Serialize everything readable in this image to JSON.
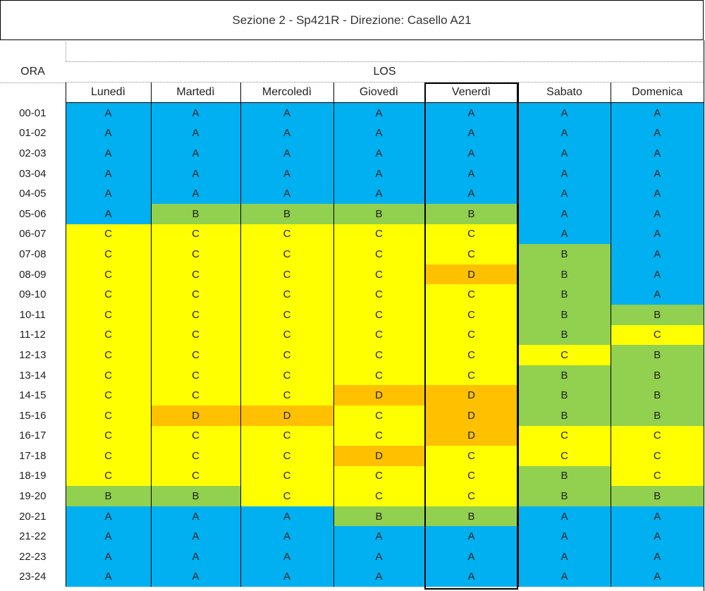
{
  "title": "Sezione 2 - Sp421R - Direzione: Casello A21",
  "ora_header": "ORA",
  "group_header": "LOS",
  "days": [
    "Lunedì",
    "Martedì",
    "Mercoledì",
    "Giovedì",
    "Venerdì",
    "Sabato",
    "Domenica"
  ],
  "highlighted_day": "Venerdì",
  "colors": {
    "A": "#00b0f0",
    "B": "#92d050",
    "C": "#ffff00",
    "D": "#ffc000"
  },
  "rows": [
    {
      "ora": "00-01",
      "los": [
        "A",
        "A",
        "A",
        "A",
        "A",
        "A",
        "A"
      ]
    },
    {
      "ora": "01-02",
      "los": [
        "A",
        "A",
        "A",
        "A",
        "A",
        "A",
        "A"
      ]
    },
    {
      "ora": "02-03",
      "los": [
        "A",
        "A",
        "A",
        "A",
        "A",
        "A",
        "A"
      ]
    },
    {
      "ora": "03-04",
      "los": [
        "A",
        "A",
        "A",
        "A",
        "A",
        "A",
        "A"
      ]
    },
    {
      "ora": "04-05",
      "los": [
        "A",
        "A",
        "A",
        "A",
        "A",
        "A",
        "A"
      ]
    },
    {
      "ora": "05-06",
      "los": [
        "A",
        "B",
        "B",
        "B",
        "B",
        "A",
        "A"
      ]
    },
    {
      "ora": "06-07",
      "los": [
        "C",
        "C",
        "C",
        "C",
        "C",
        "A",
        "A"
      ]
    },
    {
      "ora": "07-08",
      "los": [
        "C",
        "C",
        "C",
        "C",
        "C",
        "B",
        "A"
      ]
    },
    {
      "ora": "08-09",
      "los": [
        "C",
        "C",
        "C",
        "C",
        "D",
        "B",
        "A"
      ]
    },
    {
      "ora": "09-10",
      "los": [
        "C",
        "C",
        "C",
        "C",
        "C",
        "B",
        "A"
      ]
    },
    {
      "ora": "10-11",
      "los": [
        "C",
        "C",
        "C",
        "C",
        "C",
        "B",
        "B"
      ]
    },
    {
      "ora": "11-12",
      "los": [
        "C",
        "C",
        "C",
        "C",
        "C",
        "B",
        "C"
      ]
    },
    {
      "ora": "12-13",
      "los": [
        "C",
        "C",
        "C",
        "C",
        "C",
        "C",
        "B"
      ]
    },
    {
      "ora": "13-14",
      "los": [
        "C",
        "C",
        "C",
        "C",
        "C",
        "B",
        "B"
      ]
    },
    {
      "ora": "14-15",
      "los": [
        "C",
        "C",
        "C",
        "D",
        "D",
        "B",
        "B"
      ]
    },
    {
      "ora": "15-16",
      "los": [
        "C",
        "D",
        "D",
        "C",
        "D",
        "B",
        "B"
      ]
    },
    {
      "ora": "16-17",
      "los": [
        "C",
        "C",
        "C",
        "C",
        "D",
        "C",
        "C"
      ]
    },
    {
      "ora": "17-18",
      "los": [
        "C",
        "C",
        "C",
        "D",
        "C",
        "C",
        "C"
      ]
    },
    {
      "ora": "18-19",
      "los": [
        "C",
        "C",
        "C",
        "C",
        "C",
        "B",
        "C"
      ]
    },
    {
      "ora": "19-20",
      "los": [
        "B",
        "B",
        "C",
        "C",
        "C",
        "B",
        "B"
      ]
    },
    {
      "ora": "20-21",
      "los": [
        "A",
        "A",
        "A",
        "B",
        "B",
        "A",
        "A"
      ]
    },
    {
      "ora": "21-22",
      "los": [
        "A",
        "A",
        "A",
        "A",
        "A",
        "A",
        "A"
      ]
    },
    {
      "ora": "22-23",
      "los": [
        "A",
        "A",
        "A",
        "A",
        "A",
        "A",
        "A"
      ]
    },
    {
      "ora": "23-24",
      "los": [
        "A",
        "A",
        "A",
        "A",
        "A",
        "A",
        "A"
      ]
    }
  ]
}
